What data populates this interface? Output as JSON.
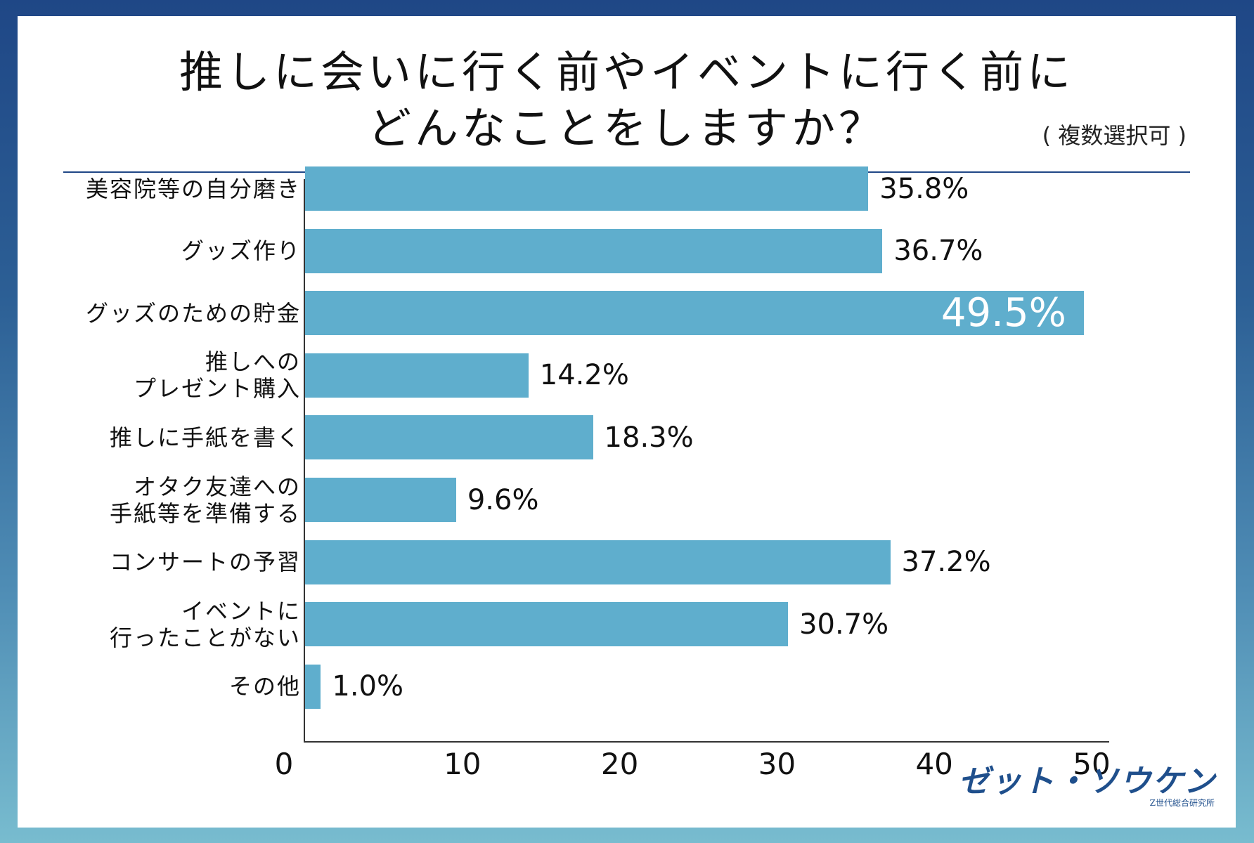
{
  "header": {
    "title_line1": "推しに会いに行く前やイベントに行く前に",
    "title_line2": "どんなことをしますか？",
    "note": "( 複数選択可 )"
  },
  "colors": {
    "bar": "#5faecd",
    "accent": "#1f4786"
  },
  "logo": {
    "main": "ゼット・ソウケン",
    "sub": "Z世代総合研究所"
  },
  "chart_data": {
    "type": "bar",
    "orientation": "horizontal",
    "categories": [
      "美容院等の自分磨き",
      "グッズ作り",
      "グッズのための貯金",
      "推しへの\nプレゼント購入",
      "推しに手紙を書く",
      "オタク友達への\n手紙等を準備する",
      "コンサートの予習",
      "イベントに\n行ったことがない",
      "その他"
    ],
    "values": [
      35.8,
      36.7,
      49.5,
      14.2,
      18.3,
      9.6,
      37.2,
      30.7,
      1.0
    ],
    "value_labels": [
      "35.8%",
      "36.7%",
      "49.5%",
      "14.2%",
      "18.3%",
      "9.6%",
      "37.2%",
      "30.7%",
      "1.0%"
    ],
    "xlim": [
      0,
      50
    ],
    "xticks": [
      "0",
      "10",
      "20",
      "30",
      "40",
      "50"
    ],
    "grid": false
  }
}
